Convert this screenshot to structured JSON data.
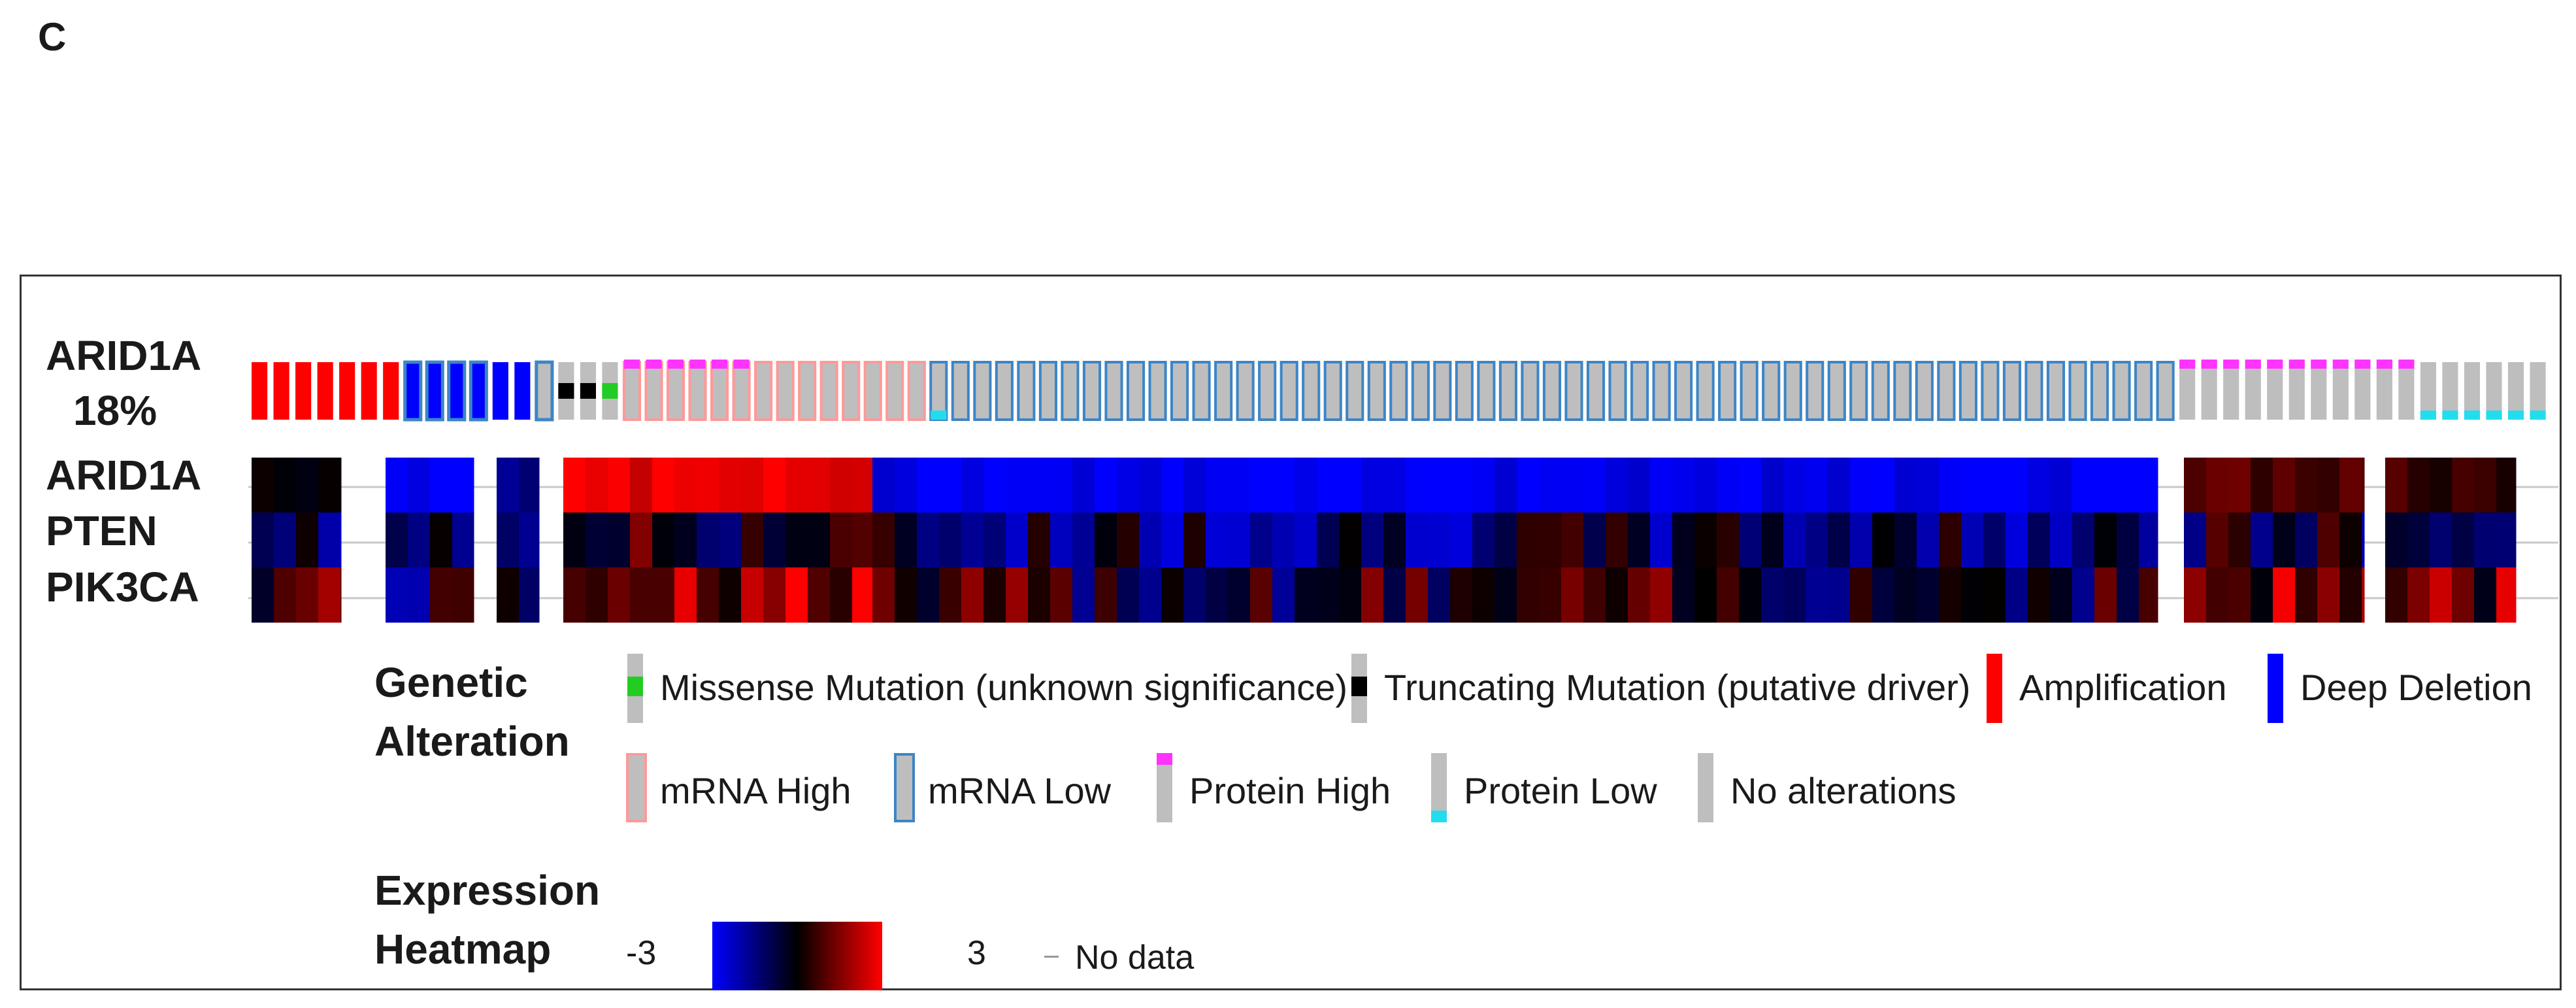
{
  "panel_letter": "C",
  "chart_data": {
    "type": "heatmap",
    "title": "",
    "oncoprint": {
      "gene": "ARID1A",
      "altered_percent": "18%",
      "tracks": [
        "ARID1A",
        "PTEN",
        "PIK3CA"
      ]
    },
    "legend": {
      "genetic_alteration_title": "Genetic\nAlteration",
      "items": [
        {
          "key": "missense",
          "label": "Missense Mutation (unknown significance)"
        },
        {
          "key": "truncating",
          "label": "Truncating Mutation (putative driver)"
        },
        {
          "key": "amplification",
          "label": "Amplification"
        },
        {
          "key": "deep_deletion",
          "label": "Deep Deletion"
        },
        {
          "key": "mrna_high",
          "label": "mRNA High"
        },
        {
          "key": "mrna_low",
          "label": "mRNA Low"
        },
        {
          "key": "protein_high",
          "label": "Protein High"
        },
        {
          "key": "protein_low",
          "label": "Protein Low"
        },
        {
          "key": "no_alterations",
          "label": "No alterations"
        }
      ],
      "expression_title": "Expression\nHeatmap",
      "scale_min": "-3",
      "scale_max": "3",
      "no_data_label": "No data"
    },
    "colors": {
      "amplification": "#ff0000",
      "deep_deletion": "#0000ff",
      "missense": "#22cc22",
      "truncating": "#000000",
      "mrna_high_border": "#ff9999",
      "mrna_low_border": "#3d85c6",
      "protein_high": "#ff33ff",
      "protein_low": "#22ddee",
      "no_alteration": "#bebebe",
      "heat_low": "#0000ff",
      "heat_mid": "#000000",
      "heat_high": "#ff0000"
    }
  }
}
